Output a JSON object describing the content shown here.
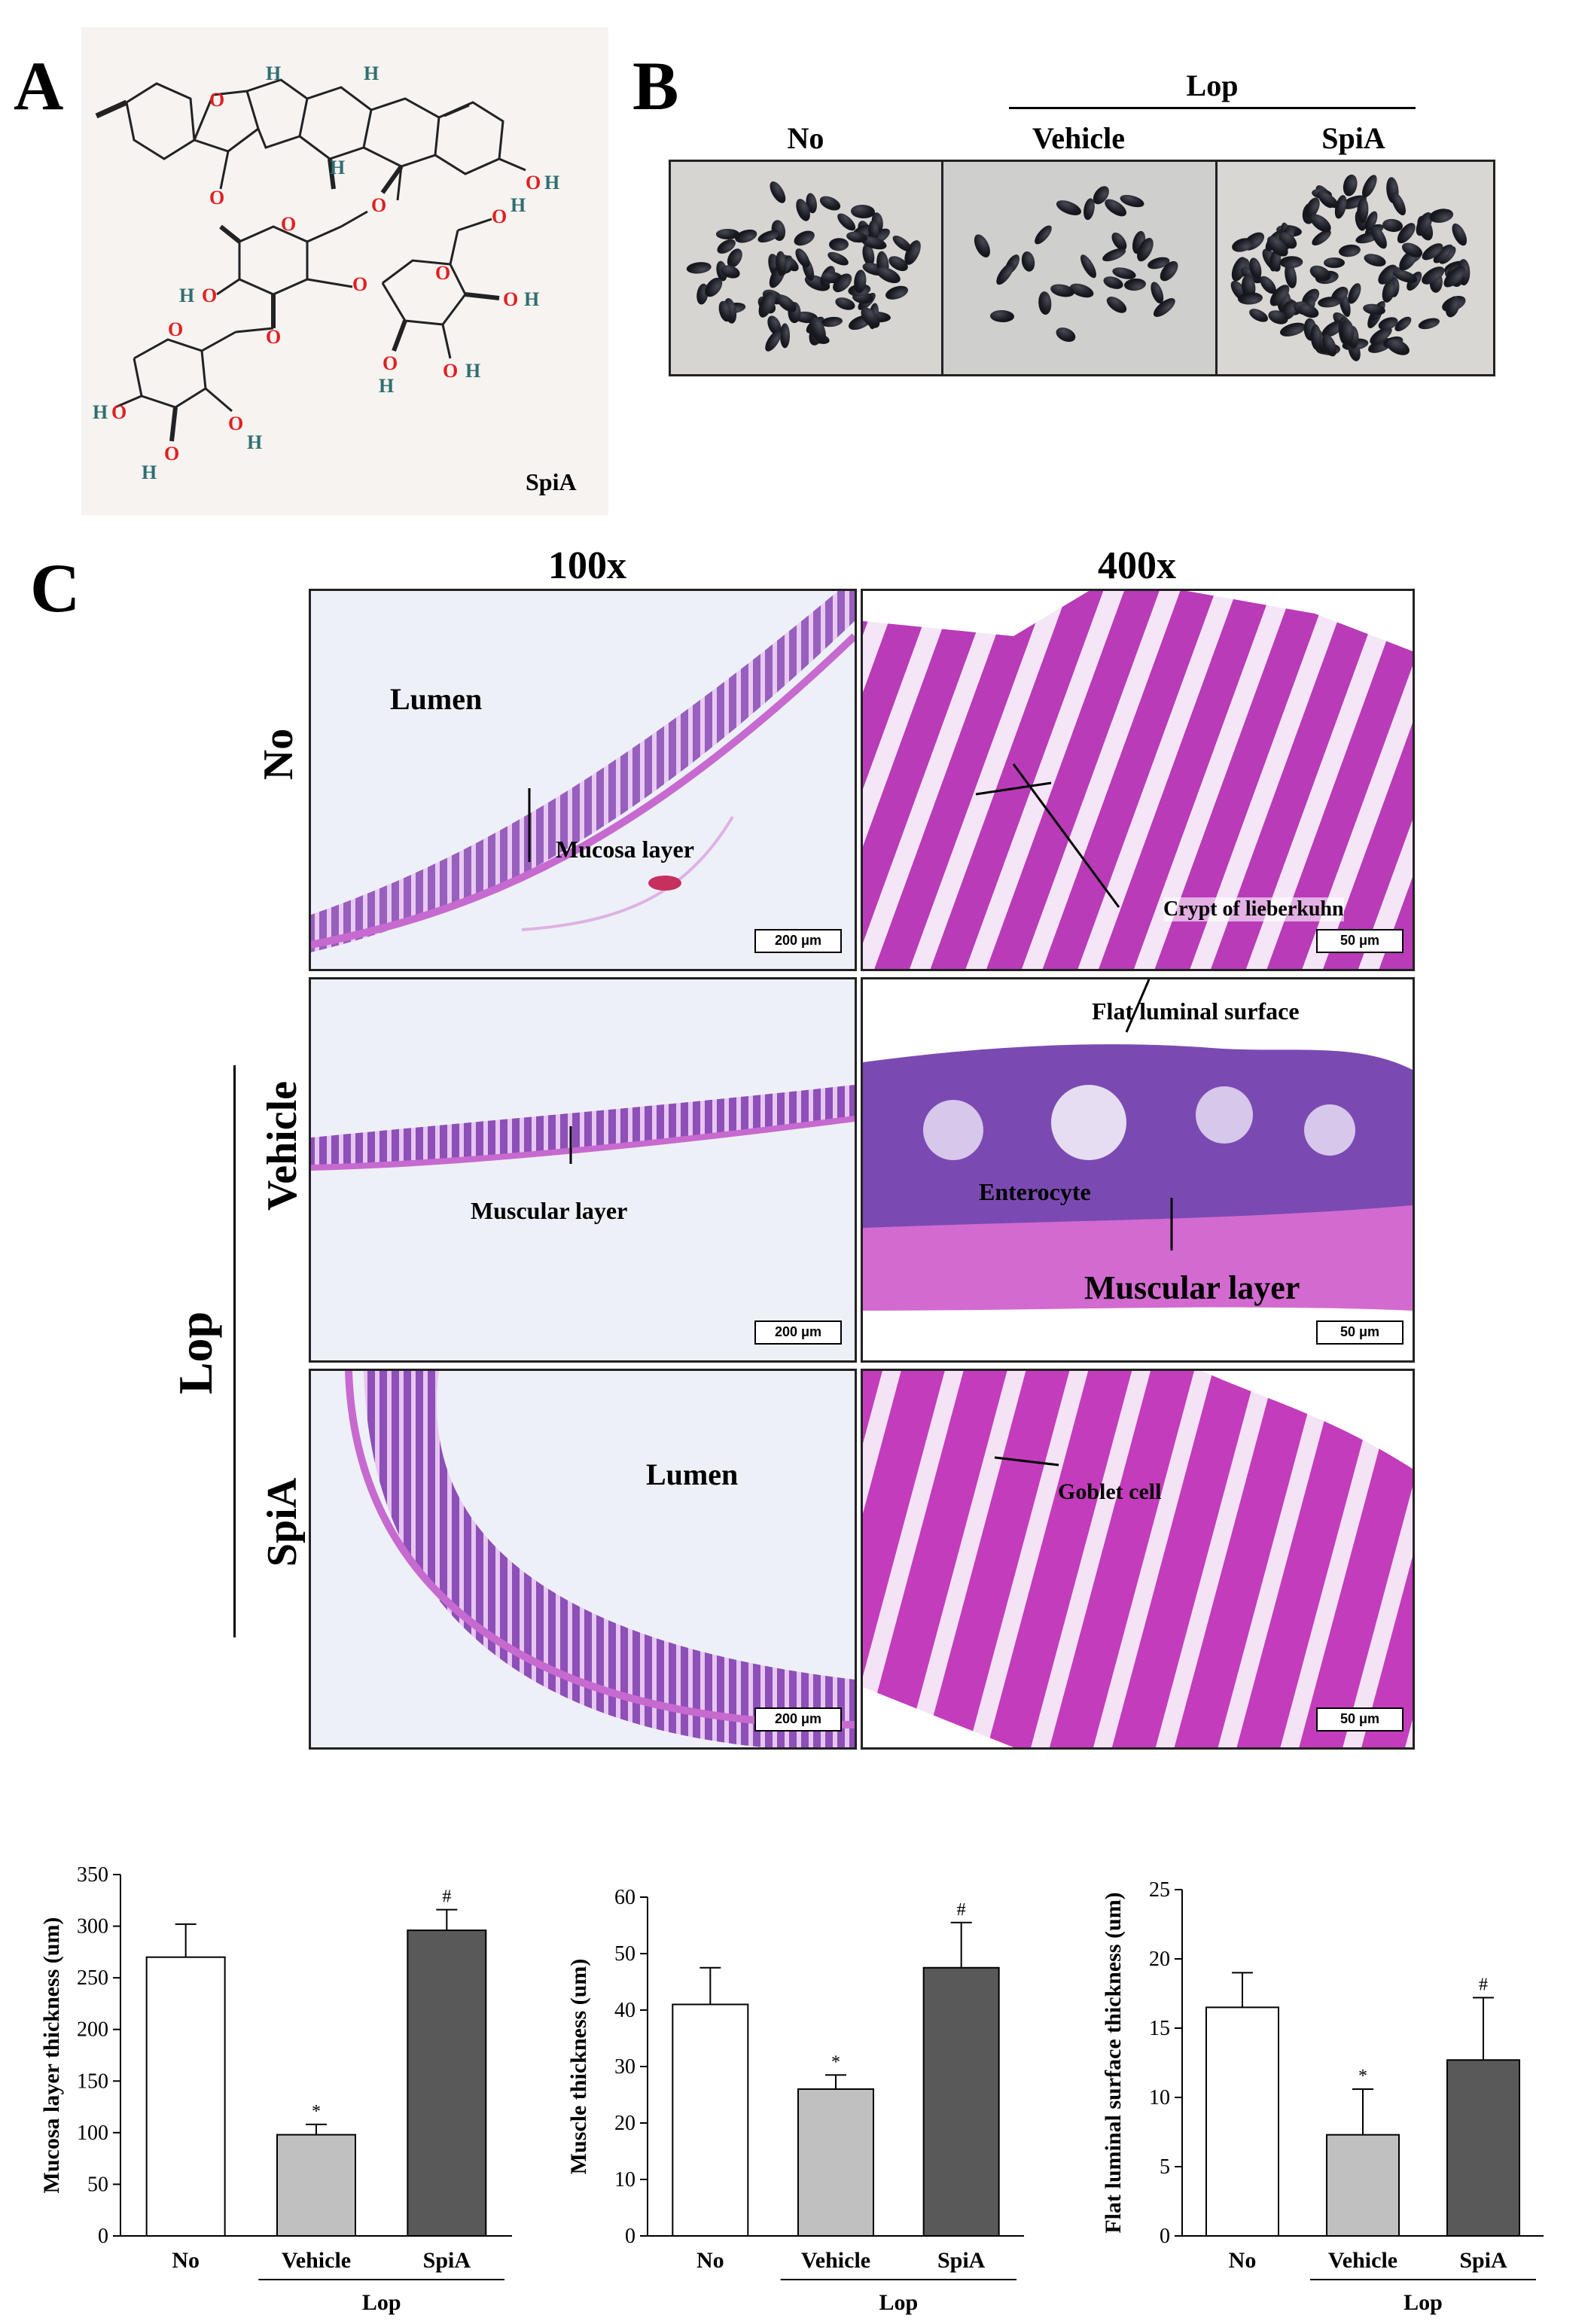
{
  "panelA": {
    "letter": "A",
    "compound": "SpiA",
    "atoms": {
      "H": "H",
      "O": "O"
    }
  },
  "panelB": {
    "letter": "B",
    "group_header": "Lop",
    "columns": [
      "No",
      "Vehicle",
      "SpiA"
    ]
  },
  "panelC": {
    "letter": "C",
    "mag_100": "100x",
    "mag_400": "400x",
    "rows": [
      "No",
      "Vehicle",
      "SpiA"
    ],
    "group_label": "Lop",
    "annotations": {
      "lumen_no": "Lumen",
      "mucosa_layer": "Mucosa layer",
      "crypt": "Crypt of lieberkuhn",
      "flat_luminal": "Flat luminal  surface",
      "muscular_100": "Muscular  layer",
      "enterocyte": "Enterocyte",
      "muscular_400": "Muscular layer",
      "lumen_spia": "Lumen",
      "goblet": "Goblet cell"
    },
    "scale_100": "200 μm",
    "scale_400": "50 μm"
  },
  "chart_data": [
    {
      "type": "bar",
      "ylabel": "Mucosa layer thickness (um)",
      "categories": [
        "No",
        "Vehicle",
        "SpiA"
      ],
      "values": [
        270,
        98,
        296
      ],
      "errors": [
        32,
        10,
        20
      ],
      "markers": [
        "",
        "*",
        "#"
      ],
      "ylim": [
        0,
        350
      ],
      "yticks": [
        0,
        50,
        100,
        150,
        200,
        250,
        300,
        350
      ],
      "group_label": "Lop",
      "bar_colors": [
        "#ffffff",
        "#c0c0c0",
        "#595959"
      ]
    },
    {
      "type": "bar",
      "ylabel": "Muscle thickness (um)",
      "categories": [
        "No",
        "Vehicle",
        "SpiA"
      ],
      "values": [
        41,
        26,
        47.5
      ],
      "errors": [
        6.5,
        2.5,
        8
      ],
      "markers": [
        "",
        "*",
        "#"
      ],
      "ylim": [
        0,
        60
      ],
      "yticks": [
        0,
        10,
        20,
        30,
        40,
        50,
        60
      ],
      "group_label": "Lop",
      "bar_colors": [
        "#ffffff",
        "#c0c0c0",
        "#595959"
      ]
    },
    {
      "type": "bar",
      "ylabel": "Flat luminal  surface thickness (um)",
      "categories": [
        "No",
        "Vehicle",
        "SpiA"
      ],
      "values": [
        16.5,
        7.3,
        12.7
      ],
      "errors": [
        2.5,
        3.3,
        4.5
      ],
      "markers": [
        "",
        "*",
        "#"
      ],
      "ylim": [
        0,
        25
      ],
      "yticks": [
        0,
        5,
        10,
        15,
        20,
        25
      ],
      "group_label": "Lop",
      "bar_colors": [
        "#ffffff",
        "#c0c0c0",
        "#595959"
      ]
    }
  ]
}
